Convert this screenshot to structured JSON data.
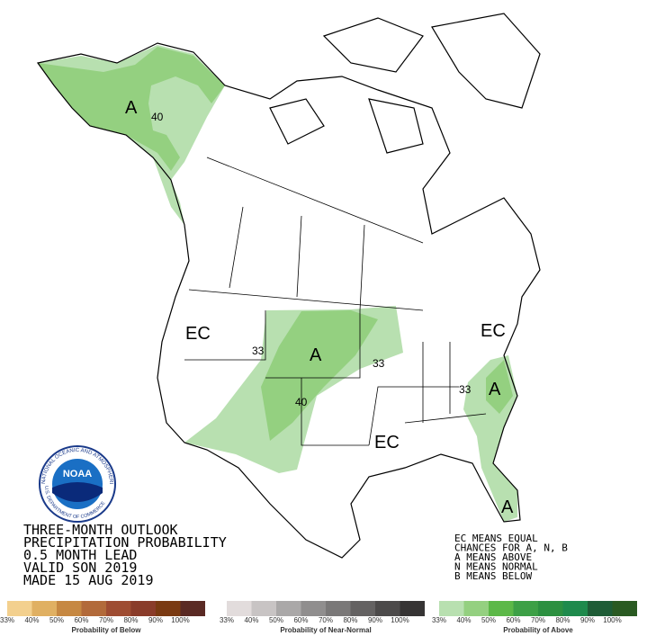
{
  "title_lines": [
    "THREE-MONTH OUTLOOK",
    "PRECIPITATION PROBABILITY",
    "0.5 MONTH LEAD",
    "VALID SON 2019",
    "MADE 15 AUG 2019"
  ],
  "key_lines": [
    "EC MEANS EQUAL",
    "CHANCES FOR A, N, B",
    "A MEANS ABOVE",
    "N MEANS NORMAL",
    "B MEANS BELOW"
  ],
  "map_labels": [
    "A",
    "40",
    "EC",
    "33",
    "A",
    "40",
    "33",
    "EC",
    "33",
    "A",
    "EC",
    "A"
  ],
  "logo": {
    "name": "NOAA",
    "ring": "NATIONAL OCEANIC AND ATMOSPHERIC ADMINISTRATION",
    "dept": "U.S. DEPARTMENT OF COMMERCE"
  },
  "color_scales": [
    {
      "title": "Probability of Below",
      "colors": [
        "#f3d08e",
        "#e0b062",
        "#c68842",
        "#b26a3a",
        "#9e4c32",
        "#8a3c2a",
        "#7a3a12",
        "#5a2a24"
      ],
      "ticks": [
        "33%",
        "40%",
        "50%",
        "60%",
        "70%",
        "80%",
        "90%",
        "100%"
      ]
    },
    {
      "title": "Probability of Near-Normal",
      "colors": [
        "#e2dcdc",
        "#c8c4c4",
        "#aaa8a8",
        "#908e8e",
        "#7a7878",
        "#646262",
        "#4c4a4a",
        "#363434"
      ],
      "ticks": [
        "33%",
        "40%",
        "50%",
        "60%",
        "70%",
        "80%",
        "90%",
        "100%"
      ]
    },
    {
      "title": "Probability of Above",
      "colors": [
        "#b8e0b0",
        "#94d080",
        "#5cb848",
        "#3da046",
        "#2c9040",
        "#1e8a4c",
        "#1e5c36",
        "#2a5a22"
      ],
      "ticks": [
        "33%",
        "40%",
        "50%",
        "60%",
        "70%",
        "80%",
        "90%",
        "100%"
      ]
    }
  ]
}
